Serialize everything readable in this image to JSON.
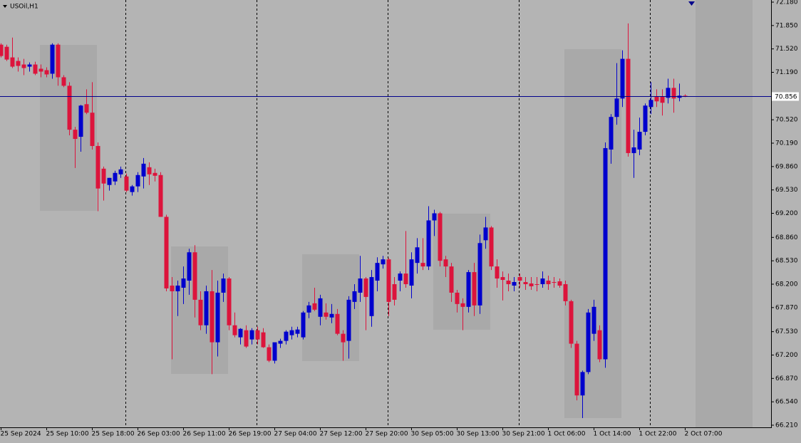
{
  "chart_data": {
    "type": "candlestick",
    "title": "USOil,H1",
    "categories": [
      "25 Sep 2024",
      null,
      null,
      null,
      null,
      null,
      null,
      null,
      "25 Sep 10:00",
      null,
      null,
      null,
      null,
      null,
      null,
      null,
      "25 Sep 18:00",
      null,
      null,
      null,
      null,
      null,
      null,
      null,
      "26 Sep 03:00",
      null,
      null,
      null,
      null,
      null,
      null,
      null,
      "26 Sep 11:00",
      null,
      null,
      null,
      null,
      null,
      null,
      null,
      "26 Sep 19:00",
      null,
      null,
      null,
      null,
      null,
      null,
      null,
      "27 Sep 04:00",
      null,
      null,
      null,
      null,
      null,
      null,
      null,
      "27 Sep 12:00",
      null,
      null,
      null,
      null,
      null,
      null,
      null,
      "27 Sep 20:00",
      null,
      null,
      null,
      null,
      null,
      null,
      null,
      "30 Sep 05:00",
      null,
      null,
      null,
      null,
      null,
      null,
      null,
      "30 Sep 13:00",
      null,
      null,
      null,
      null,
      null,
      null,
      null,
      "30 Sep 21:00",
      null,
      null,
      null,
      null,
      null,
      null,
      null,
      "1 Oct 06:00",
      null,
      null,
      null,
      null,
      null,
      null,
      null,
      "1 Oct 14:00",
      null,
      null,
      null,
      null,
      null,
      null,
      null,
      "1 Oct 22:00",
      null,
      null,
      null,
      null,
      null,
      null,
      null,
      "2 Oct 07:00"
    ],
    "open": [
      71.58,
      71.55,
      71.4,
      71.35,
      71.3,
      71.27,
      71.3,
      71.24,
      71.22,
      71.17,
      71.58,
      71.12,
      71.0,
      70.38,
      70.28,
      70.74,
      70.62,
      70.15,
      69.83,
      69.6,
      69.65,
      69.75,
      69.72,
      69.5,
      69.58,
      69.72,
      69.85,
      69.77,
      69.74,
      69.15,
      68.18,
      68.1,
      68.15,
      68.25,
      68.65,
      67.98,
      67.62,
      68.1,
      67.38,
      68.08,
      68.28,
      67.62,
      67.45,
      67.55,
      67.42,
      67.55,
      67.52,
      67.31,
      67.12,
      67.36,
      67.4,
      67.48,
      67.5,
      67.45,
      67.8,
      67.93,
      67.74,
      67.8,
      67.73,
      67.78,
      67.5,
      67.4,
      67.95,
      68.08,
      68.28,
      67.75,
      68.25,
      68.48,
      68.55,
      68.2,
      68.25,
      68.35,
      68.18,
      68.5,
      68.5,
      68.45,
      69.1,
      69.2,
      68.55,
      68.45,
      68.08,
      67.93,
      67.88,
      68.37,
      67.9,
      68.82,
      69.0,
      68.45,
      68.3,
      68.25,
      68.18,
      68.3,
      68.23,
      68.21,
      68.2,
      68.2,
      68.25,
      68.23,
      68.24,
      68.2,
      67.96,
      67.36,
      66.63,
      66.96,
      67.5,
      67.55,
      67.14,
      70.1,
      70.56,
      70.82,
      71.38,
      70.05,
      70.1,
      70.35,
      70.7,
      70.85,
      70.85,
      70.83,
      70.97,
      70.83,
      70.86
    ],
    "high": [
      71.6,
      71.58,
      71.68,
      71.4,
      71.38,
      71.33,
      71.34,
      71.3,
      71.26,
      71.6,
      71.6,
      71.15,
      71.05,
      70.42,
      70.73,
      70.95,
      71.05,
      70.2,
      69.86,
      69.7,
      69.8,
      69.86,
      69.76,
      69.6,
      69.78,
      69.98,
      69.92,
      69.83,
      69.78,
      69.18,
      68.3,
      68.25,
      68.45,
      68.7,
      68.75,
      68.1,
      68.18,
      68.4,
      68.25,
      68.35,
      68.3,
      67.8,
      67.58,
      67.62,
      67.58,
      67.6,
      67.58,
      67.35,
      67.35,
      67.43,
      67.55,
      67.6,
      67.6,
      67.82,
      67.95,
      68.15,
      68.05,
      67.93,
      67.92,
      67.85,
      67.55,
      68.03,
      68.2,
      68.6,
      68.3,
      68.4,
      68.58,
      68.6,
      68.57,
      68.3,
      68.38,
      68.95,
      68.65,
      68.85,
      68.85,
      69.3,
      69.25,
      69.22,
      68.6,
      68.5,
      68.12,
      68.0,
      68.4,
      68.5,
      68.9,
      69.15,
      69.02,
      68.55,
      68.38,
      68.35,
      68.3,
      68.35,
      68.3,
      68.3,
      68.3,
      68.38,
      68.32,
      68.3,
      68.28,
      68.25,
      67.98,
      67.4,
      66.98,
      67.85,
      67.98,
      67.62,
      70.2,
      70.6,
      71.32,
      71.5,
      71.88,
      70.38,
      70.55,
      70.75,
      71.05,
      70.95,
      70.95,
      71.1,
      71.1,
      71.03,
      70.88
    ],
    "low": [
      71.4,
      71.35,
      71.25,
      71.2,
      71.15,
      71.2,
      71.15,
      71.12,
      71.12,
      71.1,
      71.0,
      70.98,
      70.3,
      69.84,
      70.07,
      70.6,
      70.1,
      69.23,
      69.38,
      69.52,
      69.6,
      69.7,
      69.5,
      69.45,
      69.5,
      69.55,
      69.6,
      69.65,
      69.15,
      68.1,
      67.14,
      67.75,
      67.92,
      68.05,
      67.73,
      67.55,
      67.5,
      66.93,
      67.18,
      67.95,
      67.55,
      67.45,
      67.35,
      67.3,
      67.35,
      67.35,
      67.3,
      67.1,
      67.08,
      67.3,
      67.35,
      67.42,
      67.45,
      67.42,
      67.72,
      67.82,
      67.62,
      67.7,
      67.65,
      67.48,
      67.12,
      67.15,
      67.85,
      67.95,
      67.55,
      67.6,
      68.1,
      68.42,
      67.75,
      67.9,
      68.1,
      68.15,
      68.0,
      68.35,
      68.4,
      68.4,
      68.88,
      68.45,
      68.3,
      67.95,
      67.8,
      67.55,
      67.8,
      67.75,
      67.78,
      68.7,
      68.4,
      68.15,
      67.97,
      68.1,
      68.1,
      68.15,
      68.12,
      68.12,
      68.1,
      68.15,
      68.12,
      68.15,
      68.15,
      67.9,
      67.3,
      66.56,
      66.31,
      66.93,
      67.4,
      67.1,
      67.02,
      69.9,
      70.45,
      70.7,
      70.0,
      69.7,
      70.02,
      70.3,
      70.6,
      70.7,
      70.58,
      70.75,
      70.62,
      70.78,
      70.84
    ],
    "close": [
      71.42,
      71.37,
      71.27,
      71.28,
      71.25,
      71.3,
      71.17,
      71.2,
      71.16,
      71.58,
      71.12,
      71.0,
      70.38,
      70.25,
      70.72,
      70.62,
      70.15,
      69.55,
      69.62,
      69.7,
      69.77,
      69.82,
      69.52,
      69.58,
      69.74,
      69.9,
      69.75,
      69.73,
      69.15,
      68.14,
      68.1,
      68.18,
      68.28,
      68.65,
      67.98,
      67.62,
      68.1,
      67.38,
      68.08,
      68.28,
      67.62,
      67.48,
      67.57,
      67.32,
      67.55,
      67.42,
      67.31,
      67.12,
      67.38,
      67.4,
      67.53,
      67.55,
      67.56,
      67.8,
      67.9,
      67.84,
      68.0,
      67.74,
      67.78,
      67.5,
      67.38,
      67.98,
      68.1,
      68.28,
      68.02,
      68.3,
      68.5,
      68.55,
      67.95,
      67.98,
      68.35,
      68.2,
      68.55,
      68.72,
      68.45,
      69.1,
      69.2,
      68.53,
      68.45,
      68.08,
      67.92,
      67.88,
      68.37,
      67.9,
      68.78,
      69.0,
      68.45,
      68.28,
      68.26,
      68.2,
      68.23,
      68.25,
      68.2,
      68.17,
      68.19,
      68.28,
      68.2,
      68.22,
      68.18,
      67.96,
      67.36,
      66.63,
      66.96,
      67.8,
      67.88,
      67.14,
      70.12,
      70.56,
      70.82,
      71.38,
      70.05,
      70.13,
      70.35,
      70.72,
      70.8,
      70.78,
      70.76,
      70.97,
      70.82,
      70.86,
      70.856
    ],
    "up_color": "#0000cd",
    "down_color": "#dc143c",
    "ylim": [
      66.21,
      72.18
    ],
    "yticks": [
      {
        "value": 72.18,
        "label": "72.180"
      },
      {
        "value": 71.85,
        "label": "71.850"
      },
      {
        "value": 71.52,
        "label": "71.520"
      },
      {
        "value": 71.19,
        "label": "71.190"
      },
      {
        "value": 70.86,
        "label": "70.860"
      },
      {
        "value": 70.52,
        "label": "70.520"
      },
      {
        "value": 70.19,
        "label": "70.190"
      },
      {
        "value": 69.86,
        "label": "69.860"
      },
      {
        "value": 69.53,
        "label": "69.530"
      },
      {
        "value": 69.2,
        "label": "69.200"
      },
      {
        "value": 68.86,
        "label": "68.860"
      },
      {
        "value": 68.53,
        "label": "68.530"
      },
      {
        "value": 68.2,
        "label": "68.200"
      },
      {
        "value": 67.87,
        "label": "67.870"
      },
      {
        "value": 67.53,
        "label": "67.530"
      },
      {
        "value": 67.2,
        "label": "67.200"
      },
      {
        "value": 66.87,
        "label": "66.870"
      },
      {
        "value": 66.54,
        "label": "66.540"
      },
      {
        "value": 66.21,
        "label": "66.210"
      }
    ],
    "current_price": {
      "value": 70.856,
      "label": "70.856"
    },
    "current_price_color": "#00008b"
  }
}
